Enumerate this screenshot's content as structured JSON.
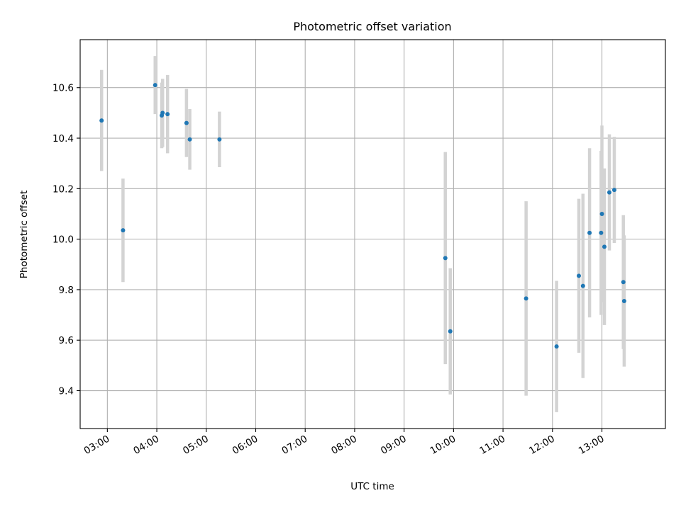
{
  "chart_data": {
    "type": "scatter",
    "title": "Photometric offset variation",
    "xlabel": "UTC time",
    "ylabel": "Photometric offset",
    "x_is_time": true,
    "xlim": [
      "02:27",
      "14:17"
    ],
    "ylim": [
      9.25,
      10.79
    ],
    "x_ticks": [
      "03:00",
      "04:00",
      "05:00",
      "06:00",
      "07:00",
      "08:00",
      "09:00",
      "10:00",
      "11:00",
      "12:00",
      "13:00"
    ],
    "y_ticks": [
      "9.4",
      "9.6",
      "9.8",
      "10.0",
      "10.2",
      "10.4",
      "10.6"
    ],
    "grid": true,
    "marker_color": "#1f77b4",
    "errorbar_color": "#d3d3d3",
    "points": [
      {
        "time": "02:53",
        "y": 10.47,
        "err": 0.2
      },
      {
        "time": "03:19",
        "y": 10.035,
        "err": 0.205
      },
      {
        "time": "03:58",
        "y": 10.61,
        "err": 0.115
      },
      {
        "time": "04:06",
        "y": 10.49,
        "err": 0.13
      },
      {
        "time": "04:07",
        "y": 10.5,
        "err": 0.135
      },
      {
        "time": "04:13",
        "y": 10.495,
        "err": 0.155
      },
      {
        "time": "04:36",
        "y": 10.46,
        "err": 0.135
      },
      {
        "time": "04:40",
        "y": 10.395,
        "err": 0.12
      },
      {
        "time": "05:16",
        "y": 10.395,
        "err": 0.11
      },
      {
        "time": "09:50",
        "y": 9.925,
        "err": 0.42
      },
      {
        "time": "09:56",
        "y": 9.635,
        "err": 0.25
      },
      {
        "time": "11:28",
        "y": 9.765,
        "err": 0.385
      },
      {
        "time": "12:05",
        "y": 9.575,
        "err": 0.26
      },
      {
        "time": "12:32",
        "y": 9.855,
        "err": 0.305
      },
      {
        "time": "12:37",
        "y": 9.815,
        "err": 0.365
      },
      {
        "time": "12:45",
        "y": 10.025,
        "err": 0.335
      },
      {
        "time": "12:59",
        "y": 10.025,
        "err": 0.325
      },
      {
        "time": "13:00",
        "y": 10.1,
        "err": 0.35
      },
      {
        "time": "13:03",
        "y": 9.97,
        "err": 0.31
      },
      {
        "time": "13:09",
        "y": 10.185,
        "err": 0.23
      },
      {
        "time": "13:15",
        "y": 10.195,
        "err": 0.21
      },
      {
        "time": "13:26",
        "y": 9.83,
        "err": 0.265
      },
      {
        "time": "13:27",
        "y": 9.755,
        "err": 0.26
      }
    ]
  }
}
